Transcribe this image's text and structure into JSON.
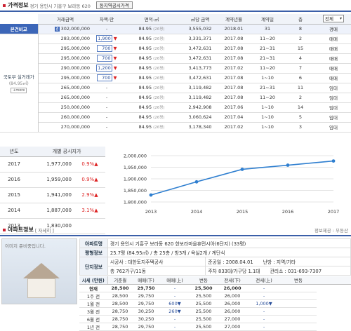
{
  "price": {
    "title": "가격정보",
    "address": "경기 용인시 기흥구 보라동 620",
    "button": "동지역공시가격",
    "headers": [
      "거래금액",
      "차액-만",
      "면적-㎡",
      "㎡당 금액",
      "계약년월",
      "계약일",
      "층"
    ],
    "filter": "전체",
    "left_labels": [
      "본건비교",
      "국토부 실거래가",
      "(84.95㎡)",
      "+more"
    ],
    "rows": [
      {
        "price": "302,000,000",
        "diff": "-",
        "area": "84.95",
        "pyeong": "(26평)",
        "unit": "3,555,032",
        "ym": "2018.01",
        "day": "31",
        "floor": "8",
        "type": "경매",
        "highlight": true,
        "tag": "경"
      },
      {
        "price": "283,000,000",
        "diff": "1,900",
        "area": "84.95",
        "pyeong": "(26평)",
        "unit": "3,331,371",
        "ym": "2017.08",
        "day": "11~20",
        "floor": "2",
        "type": "매매"
      },
      {
        "price": "295,000,000",
        "diff": "700",
        "area": "84.95",
        "pyeong": "(26평)",
        "unit": "3,472,631",
        "ym": "2017.08",
        "day": "21~31",
        "floor": "15",
        "type": "매매"
      },
      {
        "price": "295,000,000",
        "diff": "700",
        "area": "84.95",
        "pyeong": "(26평)",
        "unit": "3,472,631",
        "ym": "2017.08",
        "day": "21~31",
        "floor": "4",
        "type": "매매"
      },
      {
        "price": "290,000,000",
        "diff": "1,200",
        "area": "84.95",
        "pyeong": "(26평)",
        "unit": "3,413,773",
        "ym": "2017.02",
        "day": "11~20",
        "floor": "7",
        "type": "매매"
      },
      {
        "price": "295,000,000",
        "diff": "700",
        "area": "84.95",
        "pyeong": "(26평)",
        "unit": "3,472,631",
        "ym": "2017.08",
        "day": "1~10",
        "floor": "6",
        "type": "매매"
      },
      {
        "price": "265,000,000",
        "diff": "-",
        "area": "84.95",
        "pyeong": "(26평)",
        "unit": "3,119,482",
        "ym": "2017.08",
        "day": "21~31",
        "floor": "11",
        "type": "임대"
      },
      {
        "price": "265,000,000",
        "diff": "-",
        "area": "84.95",
        "pyeong": "(26평)",
        "unit": "3,119,482",
        "ym": "2017.08",
        "day": "11~20",
        "floor": "2",
        "type": "임대"
      },
      {
        "price": "250,000,000",
        "diff": "-",
        "area": "84.95",
        "pyeong": "(26평)",
        "unit": "2,942,908",
        "ym": "2017.06",
        "day": "1~10",
        "floor": "14",
        "type": "임대"
      },
      {
        "price": "260,000,000",
        "diff": "-",
        "area": "84.95",
        "pyeong": "(26평)",
        "unit": "3,060,624",
        "ym": "2017.04",
        "day": "1~10",
        "floor": "5",
        "type": "임대"
      },
      {
        "price": "270,000,000",
        "diff": "-",
        "area": "84.95",
        "pyeong": "(26평)",
        "unit": "3,178,340",
        "ym": "2017.02",
        "day": "1~10",
        "floor": "3",
        "type": "임대"
      }
    ]
  },
  "yearly": {
    "headers": [
      "년도",
      "개별 공시지가"
    ],
    "rows": [
      {
        "year": "2017",
        "value": "1,977,000",
        "pct": "0.9%▲"
      },
      {
        "year": "2016",
        "value": "1,959,000",
        "pct": "0.9%▲"
      },
      {
        "year": "2015",
        "value": "1,941,000",
        "pct": "2.9%▲"
      },
      {
        "year": "2014",
        "value": "1,887,000",
        "pct": "3.1%▲"
      },
      {
        "year": "2013",
        "value": "1,830,000",
        "pct": ""
      }
    ]
  },
  "chart_data": {
    "type": "line",
    "x": [
      "2013",
      "2014",
      "2015",
      "2016",
      "2017"
    ],
    "series": [
      {
        "values": [
          1830000,
          1887000,
          1941000,
          1959000,
          1977000
        ]
      }
    ],
    "y_ticks": [
      "2,000,000",
      "1,950,000",
      "1,900,000",
      "1,850,000",
      "1,800,000"
    ],
    "ylim": [
      1800000,
      2000000
    ],
    "color": "#2f7fd0"
  },
  "apt": {
    "title": "아파트정보",
    "detail": "[ 자세히 ]",
    "provider": "정보제공 : 부동산",
    "image_caption": "이미지 준비중입니다.",
    "rows": [
      {
        "label": "아파트명",
        "value": "경기 용인시 기흥구 보라동 620 한보라마을휴먼시아(6단지) (33평)"
      },
      {
        "label": "평형정보",
        "value": "25.7평 (84.95㎡) / 총 25층 / 방3개 / 욕실2개 / 계단식"
      }
    ],
    "complex": {
      "label": "단지정보",
      "builder": "시공사 : 대한토지주택공사",
      "completion": "준공일 : 2008.04.01",
      "heating": "난방 : 지역/기타",
      "households": "총 762가구/11동",
      "parking": "주차 833대/가구당 1.1대",
      "office": "관리소 : 031-693-7307"
    }
  },
  "market": {
    "label": "시세 (만원)",
    "headers": [
      "기준월",
      "매매(下)",
      "매매(上)",
      "변동",
      "전세(下)",
      "전세(上)",
      "변동"
    ],
    "rows": [
      {
        "month": "현재",
        "s_low": "28,500",
        "s_high": "29,750",
        "s_chg": "-",
        "l_low": "25,500",
        "l_high": "26,000",
        "l_chg": "-"
      },
      {
        "month": "1주 전",
        "s_low": "28,500",
        "s_high": "29,750",
        "s_chg": "-",
        "l_low": "25,500",
        "l_high": "26,000",
        "l_chg": "-"
      },
      {
        "month": "1월 전",
        "s_low": "28,500",
        "s_high": "29,750",
        "s_chg": "600▼",
        "l_low": "25,500",
        "l_high": "26,000",
        "l_chg": "1,000▼"
      },
      {
        "month": "3월 전",
        "s_low": "28,750",
        "s_high": "30,250",
        "s_chg": "260▼",
        "l_low": "25,500",
        "l_high": "26,000",
        "l_chg": "-"
      },
      {
        "month": "6월 전",
        "s_low": "28,750",
        "s_high": "30,250",
        "s_chg": "-",
        "l_low": "25,500",
        "l_high": "27,000",
        "l_chg": "-"
      },
      {
        "month": "1년 전",
        "s_low": "28,750",
        "s_high": "29,750",
        "s_chg": "-",
        "l_low": "25,500",
        "l_high": "27,000",
        "l_chg": "-"
      }
    ]
  }
}
